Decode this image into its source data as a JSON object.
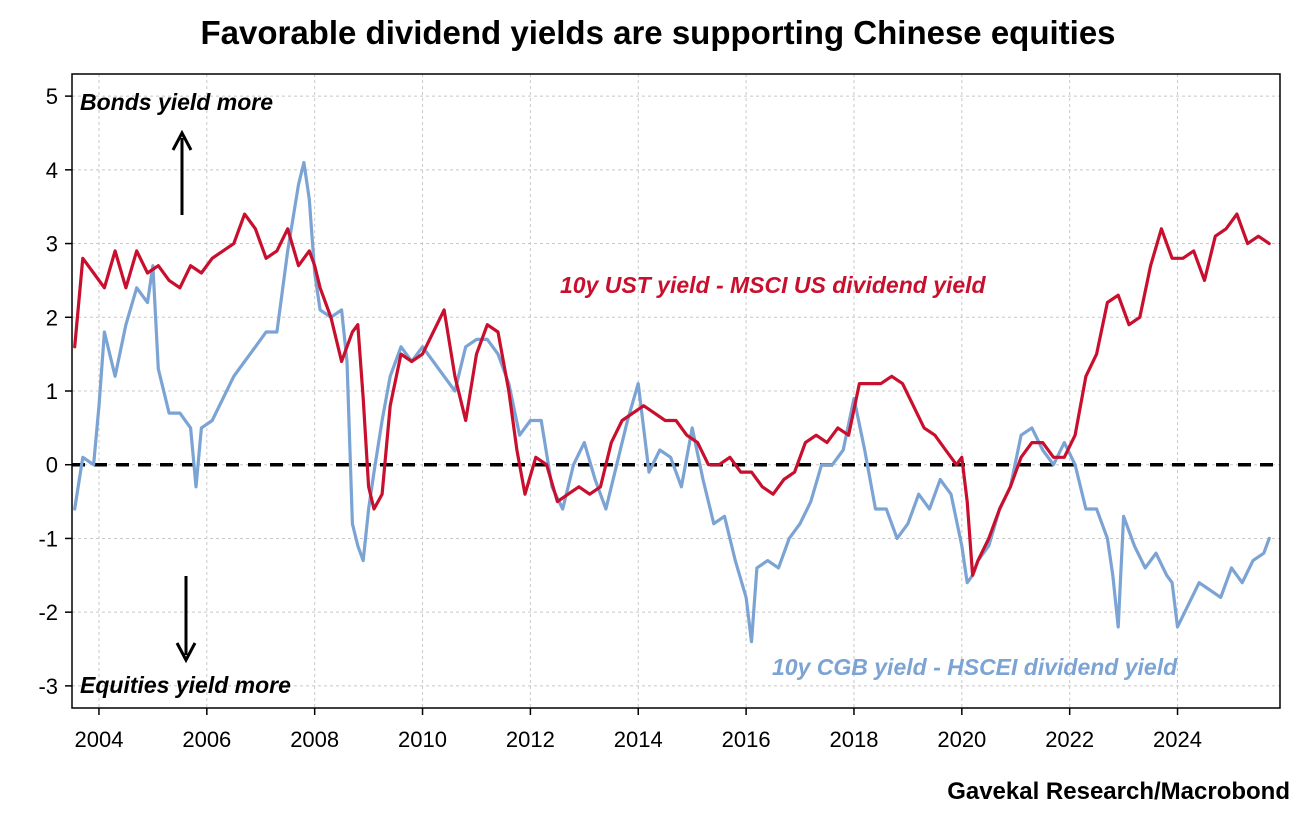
{
  "chart_data": {
    "type": "line",
    "title": "Favorable dividend yields are supporting Chinese equities",
    "source": "Gavekal Research/Macrobond",
    "xlim": [
      2003.5,
      2025.9
    ],
    "ylim": [
      -3.3,
      5.3
    ],
    "x_ticks": [
      2004,
      2006,
      2008,
      2010,
      2012,
      2014,
      2016,
      2018,
      2020,
      2022,
      2024
    ],
    "y_ticks": [
      5,
      4,
      3,
      2,
      1,
      0,
      -1,
      -2,
      -3
    ],
    "grid": true,
    "zero_line": {
      "y": 0,
      "style": "dashed",
      "color": "#000000"
    },
    "annotations": {
      "top": "Bonds yield more",
      "bottom": "Equities yield more"
    },
    "series": [
      {
        "name": "10y UST yield - MSCI US dividend yield",
        "color": "#c8102e",
        "x": [
          2003.55,
          2003.7,
          2003.9,
          2004.1,
          2004.3,
          2004.5,
          2004.7,
          2004.9,
          2005.1,
          2005.3,
          2005.5,
          2005.7,
          2005.9,
          2006.1,
          2006.3,
          2006.5,
          2006.7,
          2006.9,
          2007.1,
          2007.3,
          2007.5,
          2007.7,
          2007.9,
          2008.0,
          2008.1,
          2008.3,
          2008.5,
          2008.7,
          2008.8,
          2008.9,
          2009.0,
          2009.1,
          2009.25,
          2009.4,
          2009.6,
          2009.8,
          2010.0,
          2010.2,
          2010.4,
          2010.6,
          2010.8,
          2011.0,
          2011.2,
          2011.4,
          2011.6,
          2011.75,
          2011.9,
          2012.1,
          2012.3,
          2012.5,
          2012.7,
          2012.9,
          2013.1,
          2013.3,
          2013.5,
          2013.7,
          2013.9,
          2014.1,
          2014.3,
          2014.5,
          2014.7,
          2014.9,
          2015.1,
          2015.3,
          2015.5,
          2015.7,
          2015.9,
          2016.1,
          2016.3,
          2016.5,
          2016.7,
          2016.9,
          2017.1,
          2017.3,
          2017.5,
          2017.7,
          2017.9,
          2018.1,
          2018.3,
          2018.5,
          2018.7,
          2018.9,
          2019.1,
          2019.3,
          2019.5,
          2019.7,
          2019.9,
          2020.0,
          2020.1,
          2020.2,
          2020.3,
          2020.5,
          2020.7,
          2020.9,
          2021.1,
          2021.3,
          2021.5,
          2021.7,
          2021.9,
          2022.1,
          2022.3,
          2022.5,
          2022.7,
          2022.9,
          2023.1,
          2023.3,
          2023.5,
          2023.7,
          2023.9,
          2024.1,
          2024.3,
          2024.5,
          2024.7,
          2024.9,
          2025.1,
          2025.3,
          2025.5,
          2025.7
        ],
        "y": [
          1.6,
          2.8,
          2.6,
          2.4,
          2.9,
          2.4,
          2.9,
          2.6,
          2.7,
          2.5,
          2.4,
          2.7,
          2.6,
          2.8,
          2.9,
          3.0,
          3.4,
          3.2,
          2.8,
          2.9,
          3.2,
          2.7,
          2.9,
          2.7,
          2.4,
          2.0,
          1.4,
          1.8,
          1.9,
          0.9,
          -0.3,
          -0.6,
          -0.4,
          0.8,
          1.5,
          1.4,
          1.5,
          1.8,
          2.1,
          1.2,
          0.6,
          1.5,
          1.9,
          1.8,
          1.0,
          0.2,
          -0.4,
          0.1,
          0.0,
          -0.5,
          -0.4,
          -0.3,
          -0.4,
          -0.3,
          0.3,
          0.6,
          0.7,
          0.8,
          0.7,
          0.6,
          0.6,
          0.4,
          0.3,
          0.0,
          0.0,
          0.1,
          -0.1,
          -0.1,
          -0.3,
          -0.4,
          -0.2,
          -0.1,
          0.3,
          0.4,
          0.3,
          0.5,
          0.4,
          1.1,
          1.1,
          1.1,
          1.2,
          1.1,
          0.8,
          0.5,
          0.4,
          0.2,
          0.0,
          0.1,
          -0.5,
          -1.5,
          -1.3,
          -1.0,
          -0.6,
          -0.3,
          0.1,
          0.3,
          0.3,
          0.1,
          0.1,
          0.4,
          1.2,
          1.5,
          2.2,
          2.3,
          1.9,
          2.0,
          2.7,
          3.2,
          2.8,
          2.8,
          2.9,
          2.5,
          3.1,
          3.2,
          3.4,
          3.0,
          3.1,
          3.0
        ]
      },
      {
        "name": "10y CGB yield - HSCEI dividend yield",
        "color": "#7ba3d3",
        "x": [
          2003.55,
          2003.7,
          2003.9,
          2004.0,
          2004.1,
          2004.3,
          2004.5,
          2004.7,
          2004.9,
          2005.0,
          2005.1,
          2005.3,
          2005.5,
          2005.7,
          2005.8,
          2005.9,
          2006.1,
          2006.3,
          2006.5,
          2006.7,
          2006.9,
          2007.1,
          2007.3,
          2007.5,
          2007.7,
          2007.8,
          2007.9,
          2008.0,
          2008.1,
          2008.3,
          2008.5,
          2008.6,
          2008.7,
          2008.8,
          2008.9,
          2009.0,
          2009.1,
          2009.25,
          2009.4,
          2009.6,
          2009.8,
          2010.0,
          2010.2,
          2010.4,
          2010.6,
          2010.8,
          2011.0,
          2011.2,
          2011.4,
          2011.6,
          2011.8,
          2012.0,
          2012.2,
          2012.4,
          2012.6,
          2012.8,
          2013.0,
          2013.2,
          2013.4,
          2013.6,
          2013.8,
          2014.0,
          2014.2,
          2014.4,
          2014.6,
          2014.8,
          2015.0,
          2015.2,
          2015.4,
          2015.6,
          2015.8,
          2016.0,
          2016.1,
          2016.2,
          2016.4,
          2016.6,
          2016.8,
          2017.0,
          2017.2,
          2017.4,
          2017.6,
          2017.8,
          2018.0,
          2018.2,
          2018.4,
          2018.6,
          2018.8,
          2019.0,
          2019.2,
          2019.4,
          2019.6,
          2019.8,
          2020.0,
          2020.1,
          2020.2,
          2020.3,
          2020.5,
          2020.7,
          2020.9,
          2021.1,
          2021.3,
          2021.5,
          2021.7,
          2021.9,
          2022.1,
          2022.3,
          2022.5,
          2022.7,
          2022.8,
          2022.9,
          2023.0,
          2023.2,
          2023.4,
          2023.6,
          2023.8,
          2023.9,
          2024.0,
          2024.2,
          2024.4,
          2024.6,
          2024.8,
          2025.0,
          2025.2,
          2025.4,
          2025.6,
          2025.7
        ],
        "y": [
          -0.6,
          0.1,
          0.0,
          0.8,
          1.8,
          1.2,
          1.9,
          2.4,
          2.2,
          2.7,
          1.3,
          0.7,
          0.7,
          0.5,
          -0.3,
          0.5,
          0.6,
          0.9,
          1.2,
          1.4,
          1.6,
          1.8,
          1.8,
          2.9,
          3.8,
          4.1,
          3.6,
          2.6,
          2.1,
          2.0,
          2.1,
          1.4,
          -0.8,
          -1.1,
          -1.3,
          -0.6,
          -0.1,
          0.6,
          1.2,
          1.6,
          1.4,
          1.6,
          1.4,
          1.2,
          1.0,
          1.6,
          1.7,
          1.7,
          1.5,
          1.1,
          0.4,
          0.6,
          0.6,
          -0.3,
          -0.6,
          0.0,
          0.3,
          -0.2,
          -0.6,
          0.0,
          0.6,
          1.1,
          -0.1,
          0.2,
          0.1,
          -0.3,
          0.5,
          -0.2,
          -0.8,
          -0.7,
          -1.3,
          -1.8,
          -2.4,
          -1.4,
          -1.3,
          -1.4,
          -1.0,
          -0.8,
          -0.5,
          0.0,
          0.0,
          0.2,
          0.9,
          0.2,
          -0.6,
          -0.6,
          -1.0,
          -0.8,
          -0.4,
          -0.6,
          -0.2,
          -0.4,
          -1.1,
          -1.6,
          -1.5,
          -1.3,
          -1.1,
          -0.6,
          -0.3,
          0.4,
          0.5,
          0.2,
          0.0,
          0.3,
          0.0,
          -0.6,
          -0.6,
          -1.0,
          -1.5,
          -2.2,
          -0.7,
          -1.1,
          -1.4,
          -1.2,
          -1.5,
          -1.6,
          -2.2,
          -1.9,
          -1.6,
          -1.7,
          -1.8,
          -1.4,
          -1.6,
          -1.3,
          -1.2,
          -1.0
        ]
      }
    ]
  }
}
